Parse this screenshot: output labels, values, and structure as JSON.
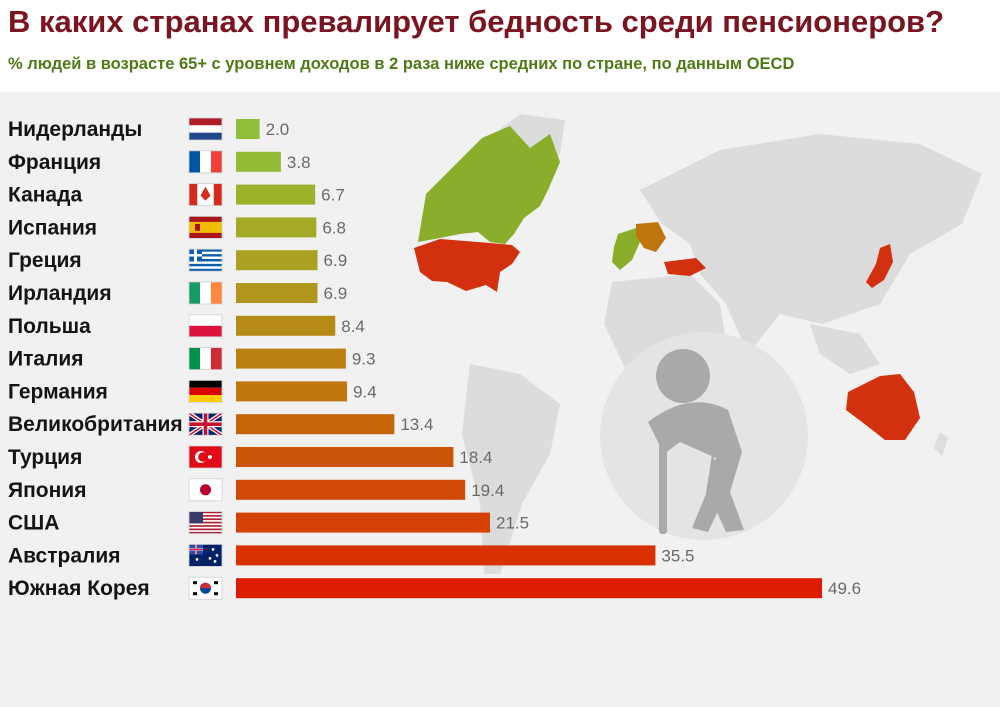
{
  "chart_data": {
    "type": "bar",
    "orientation": "horizontal",
    "title": "В каких странах превалирует бедность среди пенсионеров?",
    "subtitle": "% людей в возрасте 65+ с уровнем доходов в 2 раза ниже средних по стране, по данным OECD",
    "categories": [
      "Нидерланды",
      "Франция",
      "Канада",
      "Испания",
      "Греция",
      "Ирландия",
      "Польша",
      "Италия",
      "Германия",
      "Великобритания",
      "Турция",
      "Япония",
      "США",
      "Австралия",
      "Южная Корея"
    ],
    "values": [
      2.0,
      3.8,
      6.7,
      6.8,
      6.9,
      6.9,
      8.4,
      9.3,
      9.4,
      13.4,
      18.4,
      19.4,
      21.5,
      35.5,
      49.6
    ],
    "value_labels": [
      "2.0",
      "3.8",
      "6.7",
      "6.8",
      "6.9",
      "6.9",
      "8.4",
      "9.3",
      "9.4",
      "13.4",
      "18.4",
      "19.4",
      "21.5",
      "35.5",
      "49.6"
    ],
    "bar_colors": [
      "#8fbf3a",
      "#93bb34",
      "#9cb22b",
      "#a4aa25",
      "#aaa021",
      "#b0961c",
      "#b68a16",
      "#bc7f12",
      "#c0760e",
      "#c6640a",
      "#cc5407",
      "#d04a06",
      "#d44205",
      "#d93004",
      "#dd1c02"
    ],
    "flags": [
      "netherlands-flag",
      "france-flag",
      "canada-flag",
      "spain-flag",
      "greece-flag",
      "ireland-flag",
      "poland-flag",
      "italy-flag",
      "germany-flag",
      "uk-flag",
      "turkey-flag",
      "japan-flag",
      "usa-flag",
      "australia-flag",
      "south-korea-flag"
    ],
    "xlim": [
      0,
      50
    ],
    "grid": false,
    "legend": "none"
  },
  "colors": {
    "title": "#7a1420",
    "subtitle": "#4f7a17",
    "background": "#f1f1f1",
    "map_land": "#dcdcdc",
    "map_green": "#8aad2c",
    "map_red": "#d2300e",
    "pensioner_icon": "#a9a9a9"
  },
  "decor": {
    "background": "world-map",
    "icon": "elderly-person-with-cane-icon"
  }
}
